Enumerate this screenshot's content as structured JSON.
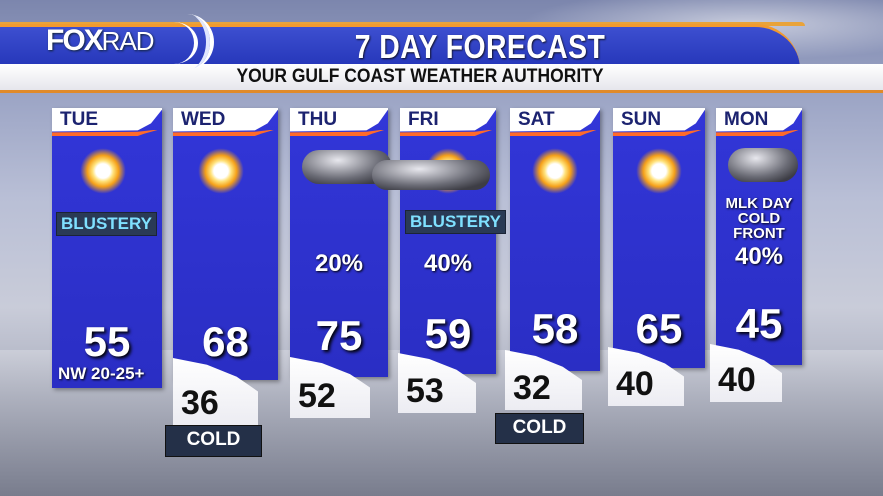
{
  "header": {
    "logo": "FOXRAD",
    "logo_bold": "FOX",
    "logo_light": "RAD",
    "title": "7 DAY FORECAST",
    "subtitle": "YOUR GULF COAST WEATHER AUTHORITY"
  },
  "colors": {
    "column": "#2e32d0",
    "accent": "#f29a2e",
    "tag_text": "#7fe0ff"
  },
  "days": [
    {
      "day": "TUE",
      "icon": "sunny-icon",
      "tag": "BLUSTERY",
      "high": "55",
      "low": "",
      "wind": "NW 20-25+"
    },
    {
      "day": "WED",
      "icon": "sunny-icon",
      "high": "68",
      "low": "36",
      "low_tag": "COLD"
    },
    {
      "day": "THU",
      "icon": "cloudy-icon",
      "pct": "20%",
      "high": "75",
      "low": "52"
    },
    {
      "day": "FRI",
      "icon": "partly-cloudy-icon",
      "tag": "BLUSTERY",
      "pct": "40%",
      "high": "59",
      "low": "53"
    },
    {
      "day": "SAT",
      "icon": "sunny-icon",
      "high": "58",
      "low": "32",
      "low_tag": "COLD"
    },
    {
      "day": "SUN",
      "icon": "sunny-icon",
      "high": "65",
      "low": "40"
    },
    {
      "day": "MON",
      "icon": "cloudy-icon",
      "note": "MLK DAY COLD FRONT",
      "pct": "40%",
      "high": "45",
      "low": "40"
    }
  ]
}
